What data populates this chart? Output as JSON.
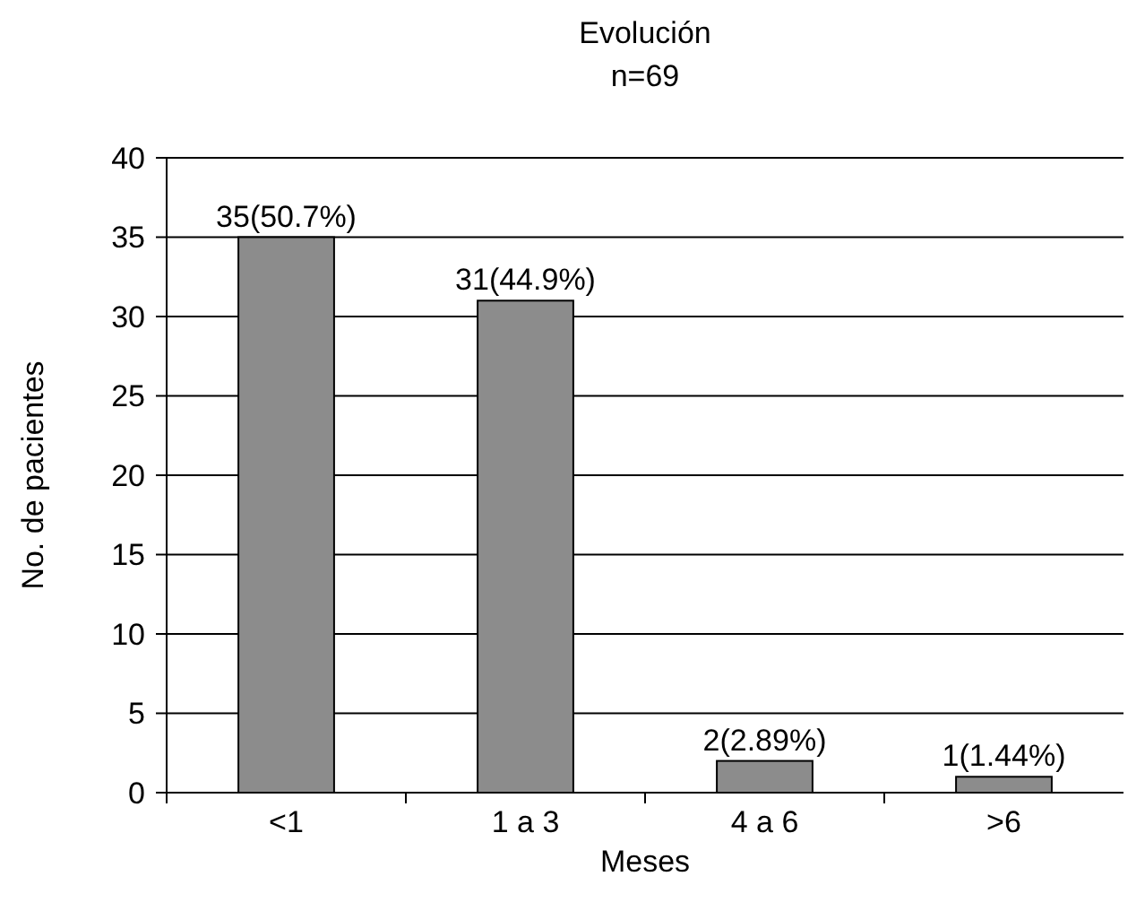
{
  "chart_data": {
    "type": "bar",
    "title": "Evolución",
    "subtitle": "n=69",
    "xlabel": "Meses",
    "ylabel": "No. de pacientes",
    "categories": [
      "<1",
      "1 a 3",
      "4 a 6",
      ">6"
    ],
    "values": [
      35,
      31,
      2,
      1
    ],
    "color": "#8c8c8c",
    "value_labels": [
      "35(50.7%)",
      "31(44.9%)",
      "2(2.89%)",
      "1(1.44%)"
    ],
    "ylim": [
      0,
      40
    ],
    "yticks": [
      0,
      5,
      10,
      15,
      20,
      25,
      30,
      35,
      40
    ],
    "grid": "y"
  }
}
